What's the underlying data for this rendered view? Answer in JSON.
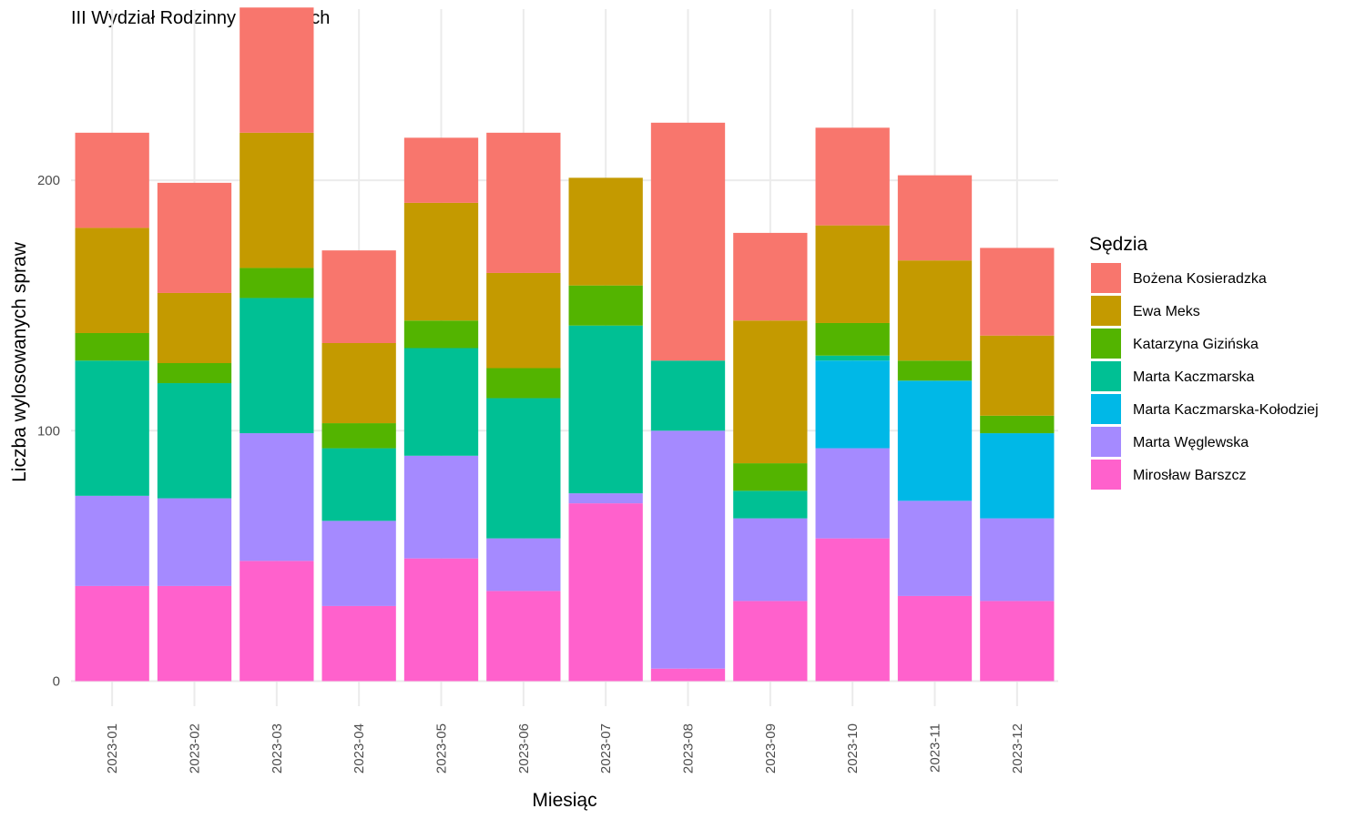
{
  "chart_data": {
    "type": "bar",
    "stacked": true,
    "title": "III Wydział Rodzinny i Nieletnich",
    "xlabel": "Miesiąc",
    "ylabel": "Liczba wylosowanych spraw",
    "ylim": [
      -10,
      272
    ],
    "yticks": [
      0,
      100,
      200
    ],
    "grid": true,
    "legend": {
      "title": "Sędzia",
      "position": "right"
    },
    "categories": [
      "2023-01",
      "2023-02",
      "2023-03",
      "2023-04",
      "2023-05",
      "2023-06",
      "2023-07",
      "2023-08",
      "2023-09",
      "2023-10",
      "2023-11",
      "2023-12"
    ],
    "series": [
      {
        "name": "Mirosław Barszcz",
        "color": "#FF61CC",
        "values": [
          38,
          38,
          48,
          30,
          49,
          36,
          71,
          5,
          32,
          57,
          34,
          32
        ]
      },
      {
        "name": "Marta Węglewska",
        "color": "#A58AFF",
        "values": [
          36,
          35,
          51,
          34,
          41,
          21,
          4,
          95,
          33,
          36,
          38,
          33
        ]
      },
      {
        "name": "Marta Kaczmarska-Kołodziej",
        "color": "#00B8E7",
        "values": [
          0,
          0,
          0,
          0,
          0,
          0,
          0,
          0,
          0,
          35,
          48,
          34
        ]
      },
      {
        "name": "Marta Kaczmarska",
        "color": "#00C094",
        "values": [
          54,
          46,
          54,
          29,
          43,
          56,
          67,
          28,
          11,
          2,
          0,
          0
        ]
      },
      {
        "name": "Katarzyna Gizińska",
        "color": "#53B400",
        "values": [
          11,
          8,
          12,
          10,
          11,
          12,
          16,
          0,
          11,
          13,
          8,
          7
        ]
      },
      {
        "name": "Ewa Meks",
        "color": "#C49A00",
        "values": [
          42,
          28,
          54,
          32,
          47,
          38,
          43,
          0,
          57,
          39,
          40,
          32
        ]
      },
      {
        "name": "Bożena Kosieradzka",
        "color": "#F8766D",
        "values": [
          38,
          44,
          50,
          37,
          26,
          56,
          0,
          95,
          35,
          39,
          34,
          35
        ]
      }
    ],
    "legend_order": [
      "Bożena Kosieradzka",
      "Ewa Meks",
      "Katarzyna Gizińska",
      "Marta Kaczmarska",
      "Marta Kaczmarska-Kołodziej",
      "Marta Węglewska",
      "Mirosław Barszcz"
    ]
  }
}
